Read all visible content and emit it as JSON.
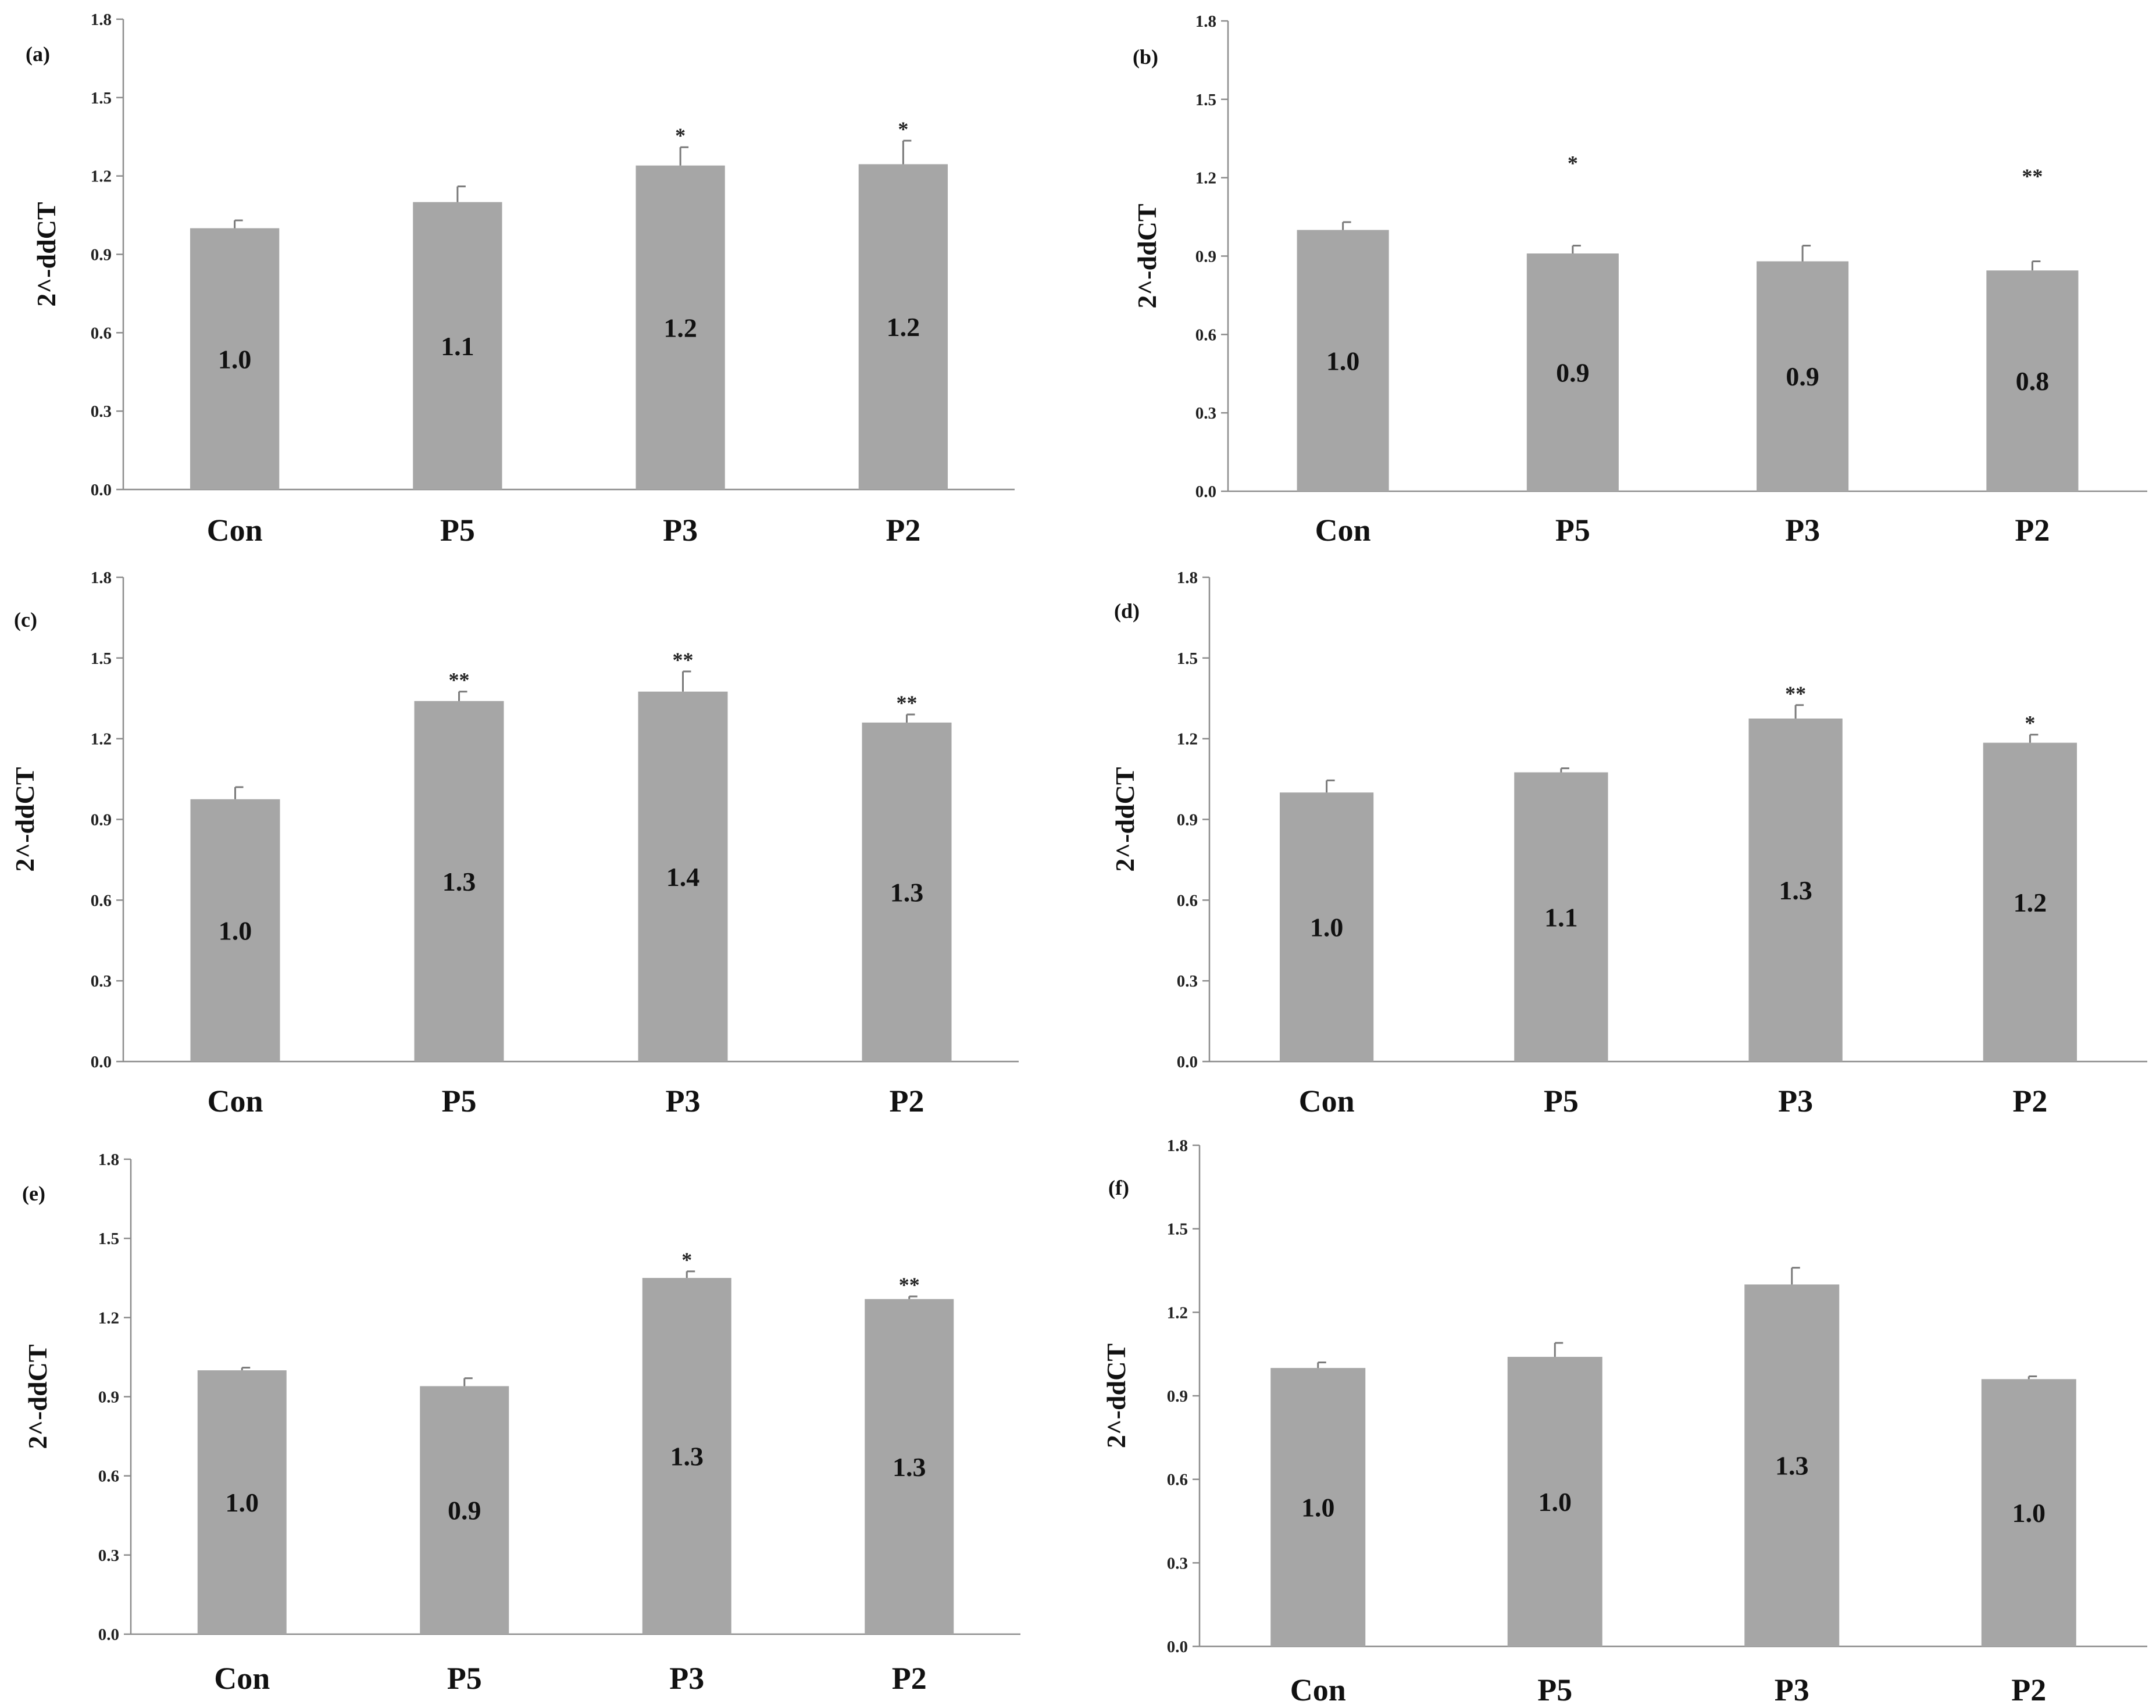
{
  "colors": {
    "bar": "#a6a6a6",
    "axis": "#8c8c8c",
    "text": "#111111"
  },
  "chart_data": [
    {
      "type": "bar",
      "panel_label": "(a)",
      "ylabel": "2^-ddCT",
      "ylim": [
        0,
        1.8
      ],
      "yticks": [
        "0.0",
        "0.3",
        "0.6",
        "0.9",
        "1.2",
        "1.5",
        "1.8"
      ],
      "ytick_values": [
        0,
        0.3,
        0.6,
        0.9,
        1.2,
        1.5,
        1.8
      ],
      "categories": [
        "Con",
        "P5",
        "P3",
        "P2"
      ],
      "values": [
        1.0,
        1.1,
        1.24,
        1.245
      ],
      "errors": [
        0.03,
        0.06,
        0.07,
        0.09
      ],
      "data_labels": [
        "1.0",
        "1.1",
        "1.2",
        "1.2"
      ],
      "significance": [
        "",
        "",
        "*",
        "*"
      ]
    },
    {
      "type": "bar",
      "panel_label": "(b)",
      "ylabel": "2^-ddCT",
      "ylim": [
        0,
        1.8
      ],
      "yticks": [
        "0.0",
        "0.3",
        "0.6",
        "0.9",
        "1.2",
        "1.5",
        "1.8"
      ],
      "ytick_values": [
        0,
        0.3,
        0.6,
        0.9,
        1.2,
        1.5,
        1.8
      ],
      "categories": [
        "Con",
        "P5",
        "P3",
        "P2"
      ],
      "values": [
        1.0,
        0.91,
        0.88,
        0.845
      ],
      "errors": [
        0.03,
        0.03,
        0.06,
        0.035
      ],
      "data_labels": [
        "1.0",
        "0.9",
        "0.9",
        "0.8"
      ],
      "significance": [
        "",
        "*",
        "",
        "**"
      ],
      "sig_heights": [
        0,
        1.26,
        0,
        1.21
      ]
    },
    {
      "type": "bar",
      "panel_label": "(c)",
      "ylabel": "2^-ddCT",
      "ylim": [
        0,
        1.8
      ],
      "yticks": [
        "0.0",
        "0.3",
        "0.6",
        "0.9",
        "1.2",
        "1.5",
        "1.8"
      ],
      "ytick_values": [
        0,
        0.3,
        0.6,
        0.9,
        1.2,
        1.5,
        1.8
      ],
      "categories": [
        "Con",
        "P5",
        "P3",
        "P2"
      ],
      "values": [
        0.975,
        1.34,
        1.375,
        1.26
      ],
      "errors": [
        0.045,
        0.035,
        0.075,
        0.03
      ],
      "data_labels": [
        "1.0",
        "1.3",
        "1.4",
        "1.3"
      ],
      "significance": [
        "",
        "**",
        "**",
        "**"
      ]
    },
    {
      "type": "bar",
      "panel_label": "(d)",
      "ylabel": "2^-ddCT",
      "ylim": [
        0,
        1.8
      ],
      "yticks": [
        "0.0",
        "0.3",
        "0.6",
        "0.9",
        "1.2",
        "1.5",
        "1.8"
      ],
      "ytick_values": [
        0,
        0.3,
        0.6,
        0.9,
        1.2,
        1.5,
        1.8
      ],
      "categories": [
        "Con",
        "P5",
        "P3",
        "P2"
      ],
      "values": [
        1.0,
        1.075,
        1.275,
        1.185
      ],
      "errors": [
        0.045,
        0.015,
        0.05,
        0.03
      ],
      "data_labels": [
        "1.0",
        "1.1",
        "1.3",
        "1.2"
      ],
      "significance": [
        "",
        "",
        "**",
        "*"
      ]
    },
    {
      "type": "bar",
      "panel_label": "(e)",
      "ylabel": "2^-ddCT",
      "ylim": [
        0,
        1.8
      ],
      "yticks": [
        "0.0",
        "0.3",
        "0.6",
        "0.9",
        "1.2",
        "1.5",
        "1.8"
      ],
      "ytick_values": [
        0,
        0.3,
        0.6,
        0.9,
        1.2,
        1.5,
        1.8
      ],
      "categories": [
        "Con",
        "P5",
        "P3",
        "P2"
      ],
      "values": [
        1.0,
        0.94,
        1.35,
        1.27
      ],
      "errors": [
        0.01,
        0.03,
        0.025,
        0.01
      ],
      "data_labels": [
        "1.0",
        "0.9",
        "1.3",
        "1.3"
      ],
      "significance": [
        "",
        "",
        "*",
        "**"
      ]
    },
    {
      "type": "bar",
      "panel_label": "(f)",
      "ylabel": "2^-ddCT",
      "ylim": [
        0,
        1.8
      ],
      "yticks": [
        "0.0",
        "0.3",
        "0.6",
        "0.9",
        "1.2",
        "1.5",
        "1.8"
      ],
      "ytick_values": [
        0,
        0.3,
        0.6,
        0.9,
        1.2,
        1.5,
        1.8
      ],
      "categories": [
        "Con",
        "P5",
        "P3",
        "P2"
      ],
      "values": [
        1.0,
        1.04,
        1.3,
        0.96
      ],
      "errors": [
        0.02,
        0.05,
        0.06,
        0.01
      ],
      "data_labels": [
        "1.0",
        "1.0",
        "1.3",
        "1.0"
      ],
      "significance": [
        "",
        "",
        "",
        ""
      ]
    }
  ]
}
